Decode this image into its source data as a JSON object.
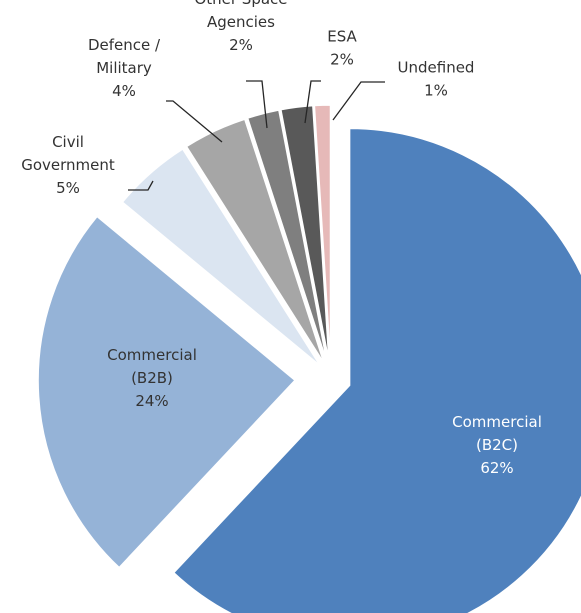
{
  "chart_data": {
    "type": "pie",
    "exploded": true,
    "start_angle": "12 o'clock, clockwise",
    "slices": [
      {
        "label": "Commercial (B2C)",
        "value": 62,
        "value_label": "62%",
        "label_lines": [
          "Commercial",
          "(B2C)",
          "62%"
        ],
        "color": "#4f81bd",
        "label_color": "#ffffff"
      },
      {
        "label": "Commercial (B2B)",
        "value": 24,
        "value_label": "24%",
        "label_lines": [
          "Commercial",
          "(B2B)",
          "24%"
        ],
        "color": "#95b3d7",
        "label_color": "#333333"
      },
      {
        "label": "Civil Government",
        "value": 5,
        "value_label": "5%",
        "label_lines": [
          "Civil",
          "Government",
          "5%"
        ],
        "color": "#dbe5f1",
        "label_color": "#333333"
      },
      {
        "label": "Defence / Military",
        "value": 4,
        "value_label": "4%",
        "label_lines": [
          "Defence /",
          "Military",
          "4%"
        ],
        "color": "#a6a6a6",
        "label_color": "#333333"
      },
      {
        "label": "Other Space Agencies",
        "value": 2,
        "value_label": "2%",
        "label_lines": [
          "Other Space",
          "Agencies",
          "2%"
        ],
        "color": "#7f7f7f",
        "label_color": "#333333"
      },
      {
        "label": "ESA",
        "value": 2,
        "value_label": "2%",
        "label_lines": [
          "ESA",
          "2%"
        ],
        "color": "#595959",
        "label_color": "#333333"
      },
      {
        "label": "Undefined",
        "value": 1,
        "value_label": "1%",
        "label_lines": [
          "Undefined",
          "1%"
        ],
        "color": "#e6b9b8",
        "label_color": "#333333"
      }
    ]
  }
}
